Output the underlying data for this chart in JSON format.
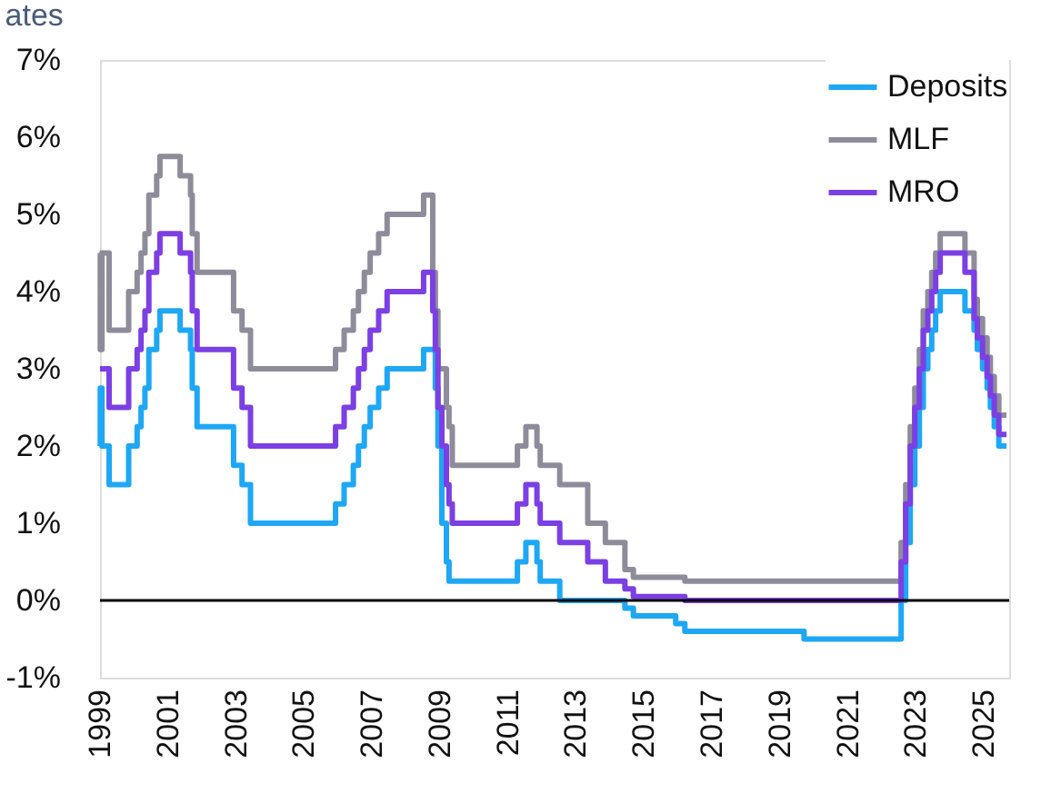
{
  "chart_data": {
    "type": "step",
    "title": "ates",
    "x": [
      "1999-01-01",
      "1999-01-04",
      "1999-01-22",
      "1999-04-09",
      "1999-11-05",
      "2000-02-04",
      "2000-03-17",
      "2000-04-28",
      "2000-06-09",
      "2000-09-01",
      "2000-10-06",
      "2001-05-11",
      "2001-08-31",
      "2001-09-18",
      "2001-11-09",
      "2002-12-06",
      "2003-03-07",
      "2003-06-06",
      "2005-12-06",
      "2006-03-08",
      "2006-06-15",
      "2006-08-09",
      "2006-10-11",
      "2006-12-13",
      "2007-03-14",
      "2007-06-13",
      "2008-07-09",
      "2008-10-15",
      "2008-11-12",
      "2008-12-10",
      "2009-01-21",
      "2009-03-11",
      "2009-04-08",
      "2009-05-13",
      "2011-04-13",
      "2011-07-13",
      "2011-11-09",
      "2011-12-14",
      "2012-07-11",
      "2013-05-08",
      "2013-11-13",
      "2014-06-11",
      "2014-09-10",
      "2015-12-09",
      "2016-03-16",
      "2019-09-18",
      "2022-07-27",
      "2022-09-14",
      "2022-11-02",
      "2022-12-21",
      "2023-02-08",
      "2023-03-22",
      "2023-05-10",
      "2023-06-21",
      "2023-08-02",
      "2023-09-20",
      "2024-06-12",
      "2024-09-18",
      "2024-10-23",
      "2024-12-18",
      "2025-02-05",
      "2025-03-12",
      "2025-04-23",
      "2025-06-11",
      "2025-09-01"
    ],
    "series": [
      {
        "name": "Deposits",
        "color": "#1ea7f5",
        "values": [
          2.0,
          2.75,
          2.0,
          1.5,
          2.0,
          2.25,
          2.5,
          2.75,
          3.25,
          3.5,
          3.75,
          3.5,
          3.25,
          2.75,
          2.25,
          1.75,
          1.5,
          1.0,
          1.25,
          1.5,
          1.75,
          2.0,
          2.25,
          2.5,
          2.75,
          3.0,
          3.25,
          3.25,
          2.75,
          2.0,
          1.0,
          0.5,
          0.25,
          0.25,
          0.5,
          0.75,
          0.5,
          0.25,
          0.0,
          0.0,
          0.0,
          -0.1,
          -0.2,
          -0.3,
          -0.4,
          -0.5,
          0.0,
          0.75,
          1.5,
          2.0,
          2.5,
          3.0,
          3.25,
          3.5,
          3.75,
          4.0,
          3.75,
          3.5,
          3.25,
          3.0,
          2.75,
          2.5,
          2.25,
          2.0,
          2.0
        ]
      },
      {
        "name": "MLF",
        "color": "#8e8c9a",
        "values": [
          4.5,
          3.25,
          4.5,
          3.5,
          4.0,
          4.25,
          4.5,
          4.75,
          5.25,
          5.5,
          5.75,
          5.5,
          5.25,
          4.75,
          4.25,
          3.75,
          3.5,
          3.0,
          3.25,
          3.5,
          3.75,
          4.0,
          4.25,
          4.5,
          4.75,
          5.0,
          5.25,
          4.25,
          3.75,
          3.0,
          3.0,
          2.5,
          2.25,
          1.75,
          2.0,
          2.25,
          2.0,
          1.75,
          1.5,
          1.0,
          0.75,
          0.4,
          0.3,
          0.3,
          0.25,
          0.25,
          0.75,
          1.5,
          2.25,
          2.75,
          3.25,
          3.75,
          4.0,
          4.25,
          4.5,
          4.75,
          4.5,
          3.9,
          3.65,
          3.4,
          3.15,
          2.9,
          2.65,
          2.4,
          2.4
        ]
      },
      {
        "name": "MRO",
        "color": "#7b3fe4",
        "values": [
          3.0,
          3.0,
          3.0,
          2.5,
          3.0,
          3.25,
          3.5,
          3.75,
          4.25,
          4.5,
          4.75,
          4.5,
          4.25,
          3.75,
          3.25,
          2.75,
          2.5,
          2.0,
          2.25,
          2.5,
          2.75,
          3.0,
          3.25,
          3.5,
          3.75,
          4.0,
          4.25,
          3.75,
          3.25,
          2.5,
          2.0,
          1.5,
          1.25,
          1.0,
          1.25,
          1.5,
          1.25,
          1.0,
          0.75,
          0.5,
          0.25,
          0.15,
          0.05,
          0.05,
          0.0,
          0.0,
          0.5,
          1.25,
          2.0,
          2.5,
          3.0,
          3.5,
          3.75,
          4.0,
          4.25,
          4.5,
          4.25,
          3.65,
          3.4,
          3.15,
          2.9,
          2.65,
          2.4,
          2.15,
          2.15
        ]
      }
    ],
    "ylim": [
      -1,
      7
    ],
    "yticks": [
      {
        "value": -1,
        "label": "-1%"
      },
      {
        "value": 0,
        "label": "0%"
      },
      {
        "value": 1,
        "label": "1%"
      },
      {
        "value": 2,
        "label": "2%"
      },
      {
        "value": 3,
        "label": "3%"
      },
      {
        "value": 4,
        "label": "4%"
      },
      {
        "value": 5,
        "label": "5%"
      },
      {
        "value": 6,
        "label": "6%"
      },
      {
        "value": 7,
        "label": "7%"
      }
    ],
    "xlim": [
      "1999-01-01",
      "2025-09-30"
    ],
    "xticks": [
      {
        "value": "1999-01-01",
        "label": "1999"
      },
      {
        "value": "2001-01-01",
        "label": "2001"
      },
      {
        "value": "2003-01-01",
        "label": "2003"
      },
      {
        "value": "2005-01-01",
        "label": "2005"
      },
      {
        "value": "2007-01-01",
        "label": "2007"
      },
      {
        "value": "2009-01-01",
        "label": "2009"
      },
      {
        "value": "2011-01-01",
        "label": "2011"
      },
      {
        "value": "2013-01-01",
        "label": "2013"
      },
      {
        "value": "2015-01-01",
        "label": "2015"
      },
      {
        "value": "2017-01-01",
        "label": "2017"
      },
      {
        "value": "2019-01-01",
        "label": "2019"
      },
      {
        "value": "2021-01-01",
        "label": "2021"
      },
      {
        "value": "2023-01-01",
        "label": "2023"
      },
      {
        "value": "2025-01-01",
        "label": "2025"
      }
    ],
    "ref_lines": [
      {
        "axis": "y",
        "value": 0,
        "color": "#000000"
      }
    ],
    "legend": "top right",
    "grid": false,
    "line_style": "solid",
    "marker": "none"
  }
}
